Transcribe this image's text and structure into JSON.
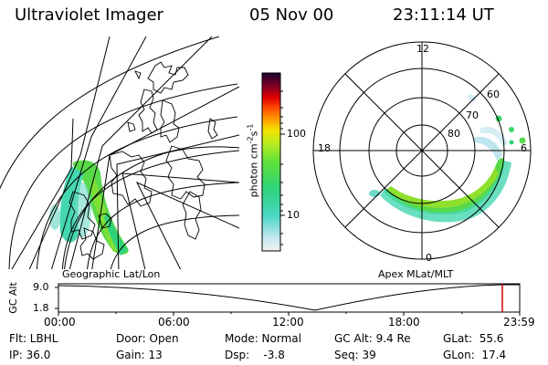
{
  "header": {
    "instrument": "Ultraviolet Imager",
    "date": "05 Nov 00",
    "time": "23:11:14 UT"
  },
  "geo_panel": {
    "label": "Geographic Lat/Lon"
  },
  "colorbar": {
    "unit": "photon cm",
    "unit_sup1": "-2",
    "unit_mid": "s",
    "unit_sup2": "-1",
    "ticks": [
      "100",
      "10"
    ]
  },
  "polar_panel": {
    "label": "Apex MLat/MLT",
    "mlt_labels": [
      "12",
      "18",
      "6",
      "0"
    ],
    "lat_labels": [
      "60",
      "70",
      "80"
    ]
  },
  "altitude_plot": {
    "axis_label": "GC Alt",
    "y_ticks": [
      "9.0",
      "1.8"
    ],
    "x_ticks": [
      "00:00",
      "06:00",
      "12:00",
      "18:00",
      "23:59"
    ],
    "marker_color": "#cc0000"
  },
  "status": {
    "flt": "Flt: LBHL",
    "door": "Door: Open",
    "mode": "Mode: Normal",
    "gc_alt": "GC Alt: 9.4 Re",
    "glat": "GLat:  55.6",
    "ip": "IP: 36.0",
    "gain": "Gain: 13",
    "dsp": "Dsp:    -3.8",
    "seq": "Seq: 39",
    "glon": "GLon:  17.4"
  }
}
